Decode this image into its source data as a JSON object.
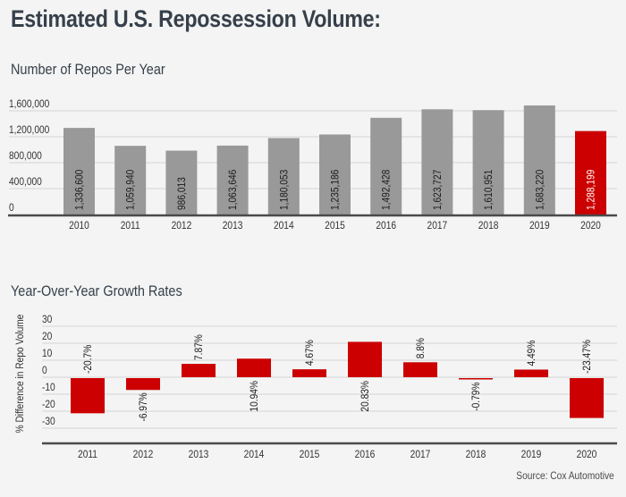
{
  "header": {
    "title": "Estimated U.S. Repossession Volume:"
  },
  "source": "Source: Cox Automotive",
  "colors": {
    "background": "#f4f4f4",
    "bar_gray": "#999999",
    "accent_red": "#cc0000",
    "gridline": "#d4d4d4",
    "axis": "#4a4a4a",
    "text_dark": "#36404a"
  },
  "chart_data": [
    {
      "type": "bar",
      "title": "Number of Repos Per Year",
      "xlabel": "",
      "ylabel": "",
      "categories": [
        "2010",
        "2011",
        "2012",
        "2013",
        "2014",
        "2015",
        "2016",
        "2017",
        "2018",
        "2019",
        "2020"
      ],
      "values": [
        1336600,
        1059940,
        986013,
        1063646,
        1180053,
        1235186,
        1492428,
        1623727,
        1610951,
        1683220,
        1288199
      ],
      "data_labels": [
        "1,336,600",
        "1,059,940",
        "986,013",
        "1,063,646",
        "1,180,053",
        "1,235,186",
        "1,492,428",
        "1,623,727",
        "1,610,951",
        "1,683,220",
        "1,288,199"
      ],
      "highlight_index": 10,
      "ylim": [
        0,
        1600000
      ],
      "yticks": [
        0,
        400000,
        800000,
        1200000,
        1600000
      ],
      "ytick_labels": [
        "0",
        "400,000",
        "800,000",
        "1,200,000",
        "1,600,000"
      ],
      "grid": true,
      "legend": "none"
    },
    {
      "type": "bar",
      "title": "Year-Over-Year Growth Rates",
      "xlabel": "",
      "ylabel": "% Difference in Repo Volume",
      "categories": [
        "2011",
        "2012",
        "2013",
        "2014",
        "2015",
        "2016",
        "2017",
        "2018",
        "2019",
        "2020"
      ],
      "values": [
        -20.7,
        -6.97,
        7.87,
        10.94,
        4.67,
        20.83,
        8.8,
        -0.79,
        4.49,
        -23.47
      ],
      "data_labels": [
        "-20.7%",
        "-6.97%",
        "7.87%",
        "10.94%",
        "4.67%",
        "20.83%",
        "8.8%",
        "-0.79%",
        "4.49%",
        "-23.47%"
      ],
      "ylim": [
        -30,
        30
      ],
      "yticks": [
        30,
        20,
        10,
        0,
        -10,
        -20,
        -30
      ],
      "ytick_labels": [
        "30",
        "20",
        "10",
        "0",
        "-10",
        "-20",
        "-30"
      ],
      "grid": true,
      "legend": "none"
    }
  ]
}
